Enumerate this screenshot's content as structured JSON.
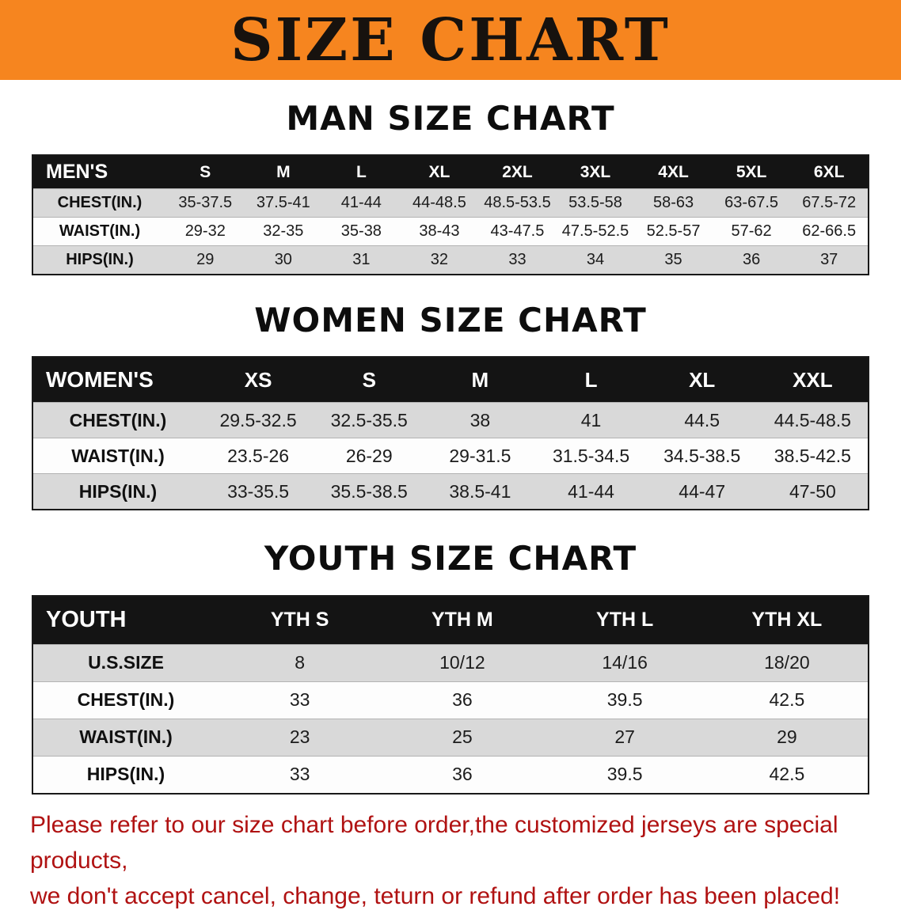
{
  "banner": {
    "title": "SIZE CHART"
  },
  "colors": {
    "banner_orange": "#f6851f",
    "header_black": "#141414",
    "row_gray": "#d9d9d9",
    "disclaimer_red": "#b01212"
  },
  "sections": [
    {
      "heading": "MAN SIZE CHART",
      "table": {
        "header": [
          "MEN'S",
          "S",
          "M",
          "L",
          "XL",
          "2XL",
          "3XL",
          "4XL",
          "5XL",
          "6XL"
        ],
        "rows": [
          [
            "CHEST(IN.)",
            "35-37.5",
            "37.5-41",
            "41-44",
            "44-48.5",
            "48.5-53.5",
            "53.5-58",
            "58-63",
            "63-67.5",
            "67.5-72"
          ],
          [
            "WAIST(IN.)",
            "29-32",
            "32-35",
            "35-38",
            "38-43",
            "43-47.5",
            "47.5-52.5",
            "52.5-57",
            "57-62",
            "62-66.5"
          ],
          [
            "HIPS(IN.)",
            "29",
            "30",
            "31",
            "32",
            "33",
            "34",
            "35",
            "36",
            "37"
          ]
        ]
      }
    },
    {
      "heading": "WOMEN SIZE CHART",
      "table": {
        "header": [
          "WOMEN'S",
          "XS",
          "S",
          "M",
          "L",
          "XL",
          "XXL"
        ],
        "rows": [
          [
            "CHEST(IN.)",
            "29.5-32.5",
            "32.5-35.5",
            "38",
            "41",
            "44.5",
            "44.5-48.5"
          ],
          [
            "WAIST(IN.)",
            "23.5-26",
            "26-29",
            "29-31.5",
            "31.5-34.5",
            "34.5-38.5",
            "38.5-42.5"
          ],
          [
            "HIPS(IN.)",
            "33-35.5",
            "35.5-38.5",
            "38.5-41",
            "41-44",
            "44-47",
            "47-50"
          ]
        ]
      }
    },
    {
      "heading": "YOUTH SIZE CHART",
      "table": {
        "header": [
          "YOUTH",
          "YTH S",
          "YTH M",
          "YTH L",
          "YTH XL"
        ],
        "rows": [
          [
            "U.S.SIZE",
            "8",
            "10/12",
            "14/16",
            "18/20"
          ],
          [
            "CHEST(IN.)",
            "33",
            "36",
            "39.5",
            "42.5"
          ],
          [
            "WAIST(IN.)",
            "23",
            "25",
            "27",
            "29"
          ],
          [
            "HIPS(IN.)",
            "33",
            "36",
            "39.5",
            "42.5"
          ]
        ]
      }
    }
  ],
  "disclaimer": {
    "line1": "Please refer to our size chart before order,the customized jerseys are special products,",
    "line2": "we don't accept cancel, change, teturn or refund after order has been placed!"
  }
}
